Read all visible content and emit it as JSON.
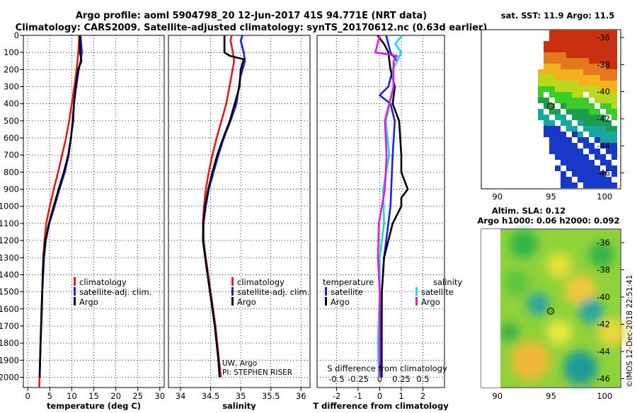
{
  "title": {
    "line1": "Argo profile: aoml 5904798_20 12-Jun-2017 41S 94.771E (NRT data)",
    "line2": "Climatology: CARS2009. Satellite-adjusted climatology: synTS_20170612.nc (0.63d earlier)"
  },
  "colors": {
    "climatology": "#e01b1b",
    "satellite": "#1c22d9",
    "argo": "#000000",
    "sat_salinity": "#19d6e6",
    "clim_salinity": "#e01bd6"
  },
  "chart_data": [
    {
      "type": "line",
      "id": "temperature",
      "xlabel": "temperature (deg C)",
      "xlim": [
        -1,
        31
      ],
      "ylim": [
        0,
        2060
      ],
      "xticks": [
        0,
        5,
        10,
        15,
        20,
        25,
        30
      ],
      "yticks": [
        0,
        100,
        200,
        300,
        400,
        500,
        600,
        700,
        800,
        900,
        1000,
        1100,
        1200,
        1300,
        1400,
        1500,
        1600,
        1700,
        1800,
        1900,
        2000
      ],
      "legend": [
        "climatology",
        "satellite-adj. clim.",
        "Argo"
      ],
      "series": [
        {
          "name": "climatology",
          "color": "#e01b1b",
          "depth": [
            0,
            100,
            200,
            300,
            400,
            500,
            600,
            700,
            800,
            900,
            1000,
            1100,
            1200,
            1300,
            1400,
            1500,
            1600,
            1800,
            2000,
            2060
          ],
          "values": [
            11.7,
            11.5,
            11.1,
            10.6,
            10.0,
            9.4,
            8.7,
            7.8,
            6.9,
            5.9,
            5.0,
            4.2,
            3.8,
            3.5,
            3.4,
            3.3,
            3.1,
            2.9,
            2.7,
            2.6
          ]
        },
        {
          "name": "satellite-adj. clim.",
          "color": "#1c22d9",
          "depth": [
            0,
            100,
            150,
            200,
            300,
            400,
            500,
            600,
            700,
            800,
            900,
            1000,
            1100,
            1200,
            1300,
            1400,
            1500,
            1600,
            1800,
            2000
          ],
          "values": [
            12.0,
            12.3,
            12.0,
            11.6,
            11.0,
            10.5,
            10.2,
            9.8,
            9.3,
            8.4,
            7.2,
            6.1,
            4.9,
            4.1,
            3.7,
            3.5,
            3.3,
            3.2,
            2.9,
            2.7
          ]
        },
        {
          "name": "Argo",
          "color": "#000000",
          "depth": [
            0,
            100,
            150,
            200,
            300,
            400,
            500,
            600,
            700,
            800,
            900,
            1000,
            1100,
            1200,
            1300,
            1400,
            1500,
            1600,
            1800,
            2000
          ],
          "values": [
            11.8,
            11.9,
            12.2,
            11.4,
            10.9,
            10.5,
            10.3,
            9.8,
            9.2,
            8.2,
            7.0,
            5.9,
            4.8,
            4.0,
            3.6,
            3.4,
            3.3,
            3.2,
            2.9,
            2.7
          ]
        }
      ]
    },
    {
      "type": "line",
      "id": "salinity",
      "xlabel": "salinity",
      "xlim": [
        33.8,
        36.15
      ],
      "ylim": [
        0,
        2060
      ],
      "xticks": [
        34,
        34.5,
        35,
        35.5,
        36
      ],
      "legend": [
        "climatology",
        "satellite-adj. clim.",
        "Argo"
      ],
      "annotation": [
        "UW, Argo",
        "PI: STEPHEN RISER"
      ],
      "series": [
        {
          "name": "climatology",
          "color": "#e01b1b",
          "depth": [
            0,
            30,
            100,
            150,
            250,
            400,
            500,
            600,
            700,
            800,
            900,
            1000,
            1100,
            1200,
            1300,
            1500,
            1700,
            1900,
            2000
          ],
          "values": [
            34.85,
            34.83,
            34.87,
            34.89,
            34.84,
            34.76,
            34.68,
            34.6,
            34.53,
            34.47,
            34.42,
            34.39,
            34.37,
            34.38,
            34.42,
            34.5,
            34.58,
            34.64,
            34.67
          ]
        },
        {
          "name": "satellite-adj. clim.",
          "color": "#1c22d9",
          "depth": [
            0,
            30,
            100,
            150,
            250,
            400,
            500,
            600,
            700,
            800,
            900,
            1000,
            1100,
            1200,
            1300,
            1500,
            1700,
            1900,
            2000
          ],
          "values": [
            35.03,
            35.0,
            35.05,
            35.07,
            34.99,
            34.93,
            34.83,
            34.72,
            34.63,
            34.55,
            34.47,
            34.42,
            34.38,
            34.37,
            34.41,
            34.49,
            34.57,
            34.63,
            34.65
          ]
        },
        {
          "name": "Argo",
          "color": "#000000",
          "depth": [
            0,
            100,
            120,
            140,
            200,
            300,
            400,
            500,
            600,
            700,
            800,
            900,
            1000,
            1100,
            1200,
            1300,
            1500,
            1700,
            1900,
            2000
          ],
          "values": [
            34.73,
            34.73,
            34.82,
            35.05,
            35.0,
            34.98,
            34.9,
            34.82,
            34.71,
            34.61,
            34.53,
            34.46,
            34.41,
            34.38,
            34.38,
            34.41,
            34.49,
            34.57,
            34.63,
            34.65
          ]
        }
      ]
    },
    {
      "type": "line",
      "id": "difference",
      "xlabel": "T difference from climatology",
      "top_axis_label": "S difference from climatology",
      "xlim": [
        -2.9,
        3.0
      ],
      "ylim": [
        0,
        2060
      ],
      "xticks": [
        -2,
        -1,
        0,
        1,
        2
      ],
      "top_ticks": [
        "-0.5",
        "-0.25",
        "0",
        "0.25",
        "0.5"
      ],
      "legend_left_title": "temperature",
      "legend_right_title": "salinity",
      "legend_left": [
        "satellite",
        "Argo"
      ],
      "legend_right": [
        "satellite",
        "Argo"
      ],
      "series": [
        {
          "name": "temperature satellite",
          "color": "#1c22d9",
          "depth": [
            0,
            100,
            150,
            200,
            300,
            350,
            400,
            500,
            700,
            1000,
            1300,
            1500,
            1800,
            2000
          ],
          "values": [
            0.3,
            0.5,
            0.8,
            0.6,
            0.4,
            0.0,
            0.5,
            0.7,
            0.6,
            0.5,
            0.2,
            0.1,
            0.1,
            0.1
          ]
        },
        {
          "name": "temperature Argo",
          "color": "#000000",
          "depth": [
            0,
            50,
            100,
            200,
            300,
            400,
            500,
            700,
            800,
            900,
            950,
            1000,
            1100,
            1300,
            1500,
            1800,
            2000
          ],
          "values": [
            -0.1,
            0.2,
            0.4,
            0.5,
            0.7,
            0.6,
            0.9,
            1.0,
            1.0,
            1.3,
            1.0,
            1.0,
            0.6,
            0.2,
            0.1,
            0.05,
            0.05
          ]
        },
        {
          "name": "salinity satellite",
          "color": "#19d6e6",
          "depth": [
            0,
            50,
            100,
            200,
            300,
            500,
            700,
            900,
            1100,
            1300,
            1500,
            1800,
            2000
          ],
          "values": [
            0.26,
            0.18,
            0.25,
            0.15,
            0.16,
            0.07,
            0.11,
            0.04,
            0.05,
            0.0,
            0.0,
            -0.02,
            -0.01
          ]
        },
        {
          "name": "salinity Argo",
          "color": "#e01bd6",
          "depth": [
            0,
            100,
            120,
            150,
            300,
            500,
            700,
            900,
            1100,
            1300,
            1500,
            1800,
            2000
          ],
          "values": [
            0.0,
            -0.05,
            0.2,
            0.16,
            0.16,
            0.06,
            0.08,
            0.06,
            -0.01,
            -0.02,
            0.0,
            0.0,
            0.0
          ]
        }
      ]
    }
  ],
  "map_sst": {
    "title": "sat. SST: 11.9 Argo: 11.5",
    "xticks": [
      "90",
      "95",
      "100"
    ],
    "yticks": [
      "-36",
      "-38",
      "-40",
      "-42",
      "-44",
      "-46"
    ]
  },
  "map_sla": {
    "title1": "Altim. SLA: 0.12",
    "title2": "Argo h1000: 0.06 h2000: 0.092",
    "xticks": [
      "90",
      "95",
      "100"
    ],
    "yticks": [
      "-36",
      "-38",
      "-40",
      "-42",
      "-44",
      "-46"
    ]
  },
  "footer": {
    "credit": "©IMOS 12-Dec-2018 22:51:41"
  }
}
